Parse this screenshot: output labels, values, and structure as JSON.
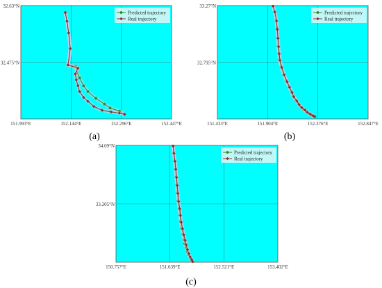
{
  "chart_data": [
    {
      "type": "line",
      "label": "(a)",
      "xticks": [
        "151.993°E",
        "152.144°E",
        "152.296°E",
        "152.447°E"
      ],
      "yticks": [
        "32.63°N",
        "32.475°N"
      ],
      "xlim": [
        151.993,
        152.447
      ],
      "ylim": [
        32.34,
        32.63
      ],
      "grid": true,
      "legend": "top-right",
      "series": [
        {
          "name": "Predicted trajectory",
          "color": "#2e8b1a",
          "x": [
            152.127,
            152.132,
            152.137,
            152.142,
            152.135,
            152.147,
            152.158,
            152.162,
            152.17,
            152.182,
            152.195,
            152.219,
            152.245,
            152.262,
            152.29,
            152.305
          ],
          "y": [
            32.612,
            32.59,
            32.56,
            32.52,
            32.478,
            32.475,
            32.475,
            32.46,
            32.445,
            32.425,
            32.41,
            32.393,
            32.378,
            32.368,
            32.36,
            32.352
          ]
        },
        {
          "name": "Real trajectory",
          "color": "#8b2c2c",
          "x": [
            152.127,
            152.132,
            152.137,
            152.142,
            152.135,
            152.165,
            152.157,
            152.16,
            152.165,
            152.17,
            152.182,
            152.195,
            152.213,
            152.238,
            152.265,
            152.29,
            152.305
          ],
          "y": [
            32.612,
            32.59,
            32.56,
            32.52,
            32.478,
            32.47,
            32.455,
            32.44,
            32.425,
            32.41,
            32.395,
            32.385,
            32.372,
            32.362,
            32.358,
            32.355,
            32.352
          ]
        }
      ]
    },
    {
      "type": "line",
      "label": "(b)",
      "xticks": [
        "151.433°E",
        "151.904°E",
        "152.376°E",
        "152.847°E"
      ],
      "yticks": [
        "33.27°N",
        "32.795°N"
      ],
      "xlim": [
        151.433,
        152.847
      ],
      "ylim": [
        32.32,
        33.27
      ],
      "grid": true,
      "legend": "top-right",
      "series": [
        {
          "name": "Predicted trajectory",
          "color": "#2e8b1a",
          "x": [
            151.955,
            151.97,
            151.985,
            151.993,
            151.998,
            152.003,
            152.008,
            152.015,
            152.03,
            152.055,
            152.08,
            152.105,
            152.125,
            152.145,
            152.168,
            152.192,
            152.215,
            152.24,
            152.268,
            152.295,
            152.32,
            152.345
          ],
          "y": [
            33.265,
            33.22,
            33.15,
            33.08,
            33.0,
            32.93,
            32.87,
            32.82,
            32.76,
            32.69,
            32.64,
            32.59,
            32.55,
            32.51,
            32.48,
            32.45,
            32.42,
            32.4,
            32.38,
            32.365,
            32.35,
            32.34
          ]
        },
        {
          "name": "Real trajectory",
          "color": "#8b2c2c",
          "x": [
            151.955,
            151.972,
            151.988,
            151.995,
            152.002,
            152.008,
            152.013,
            152.02,
            152.038,
            152.06,
            152.088,
            152.11,
            152.135,
            152.15,
            152.178,
            152.2,
            152.225,
            152.255,
            152.278,
            152.305,
            152.33,
            152.345
          ],
          "y": [
            33.265,
            33.215,
            33.14,
            33.07,
            32.995,
            32.925,
            32.865,
            32.81,
            32.75,
            32.69,
            32.63,
            32.585,
            32.54,
            32.505,
            32.47,
            32.44,
            32.415,
            32.395,
            32.375,
            32.36,
            32.348,
            32.34
          ]
        }
      ]
    },
    {
      "type": "line",
      "label": "(c)",
      "xticks": [
        "150.757°E",
        "151.639°E",
        "152.521°E",
        "153.402°E"
      ],
      "yticks": [
        "34.09°N",
        "33.205°N"
      ],
      "xlim": [
        150.757,
        153.402
      ],
      "ylim": [
        32.34,
        34.09
      ],
      "grid": true,
      "legend": "top-right",
      "series": [
        {
          "name": "Predicted trajectory",
          "color": "#2e8b1a",
          "x": [
            151.69,
            151.7,
            151.715,
            151.73,
            151.74,
            151.75,
            151.76,
            151.77,
            151.79,
            151.8,
            151.81,
            151.83,
            151.85,
            151.87,
            151.88,
            151.9,
            151.92,
            151.945,
            151.97,
            151.99,
            152.01
          ],
          "y": [
            34.08,
            33.98,
            33.86,
            33.74,
            33.62,
            33.5,
            33.38,
            33.26,
            33.15,
            33.05,
            32.95,
            32.85,
            32.76,
            32.68,
            32.62,
            32.56,
            32.5,
            32.45,
            32.41,
            32.37,
            32.35
          ]
        },
        {
          "name": "Real trajectory",
          "color": "#8b2c2c",
          "x": [
            151.69,
            151.705,
            151.722,
            151.735,
            151.748,
            151.758,
            151.77,
            151.782,
            151.8,
            151.812,
            151.825,
            151.845,
            151.866,
            151.888,
            151.905,
            151.925,
            151.948,
            151.97,
            151.995,
            152.01
          ],
          "y": [
            34.08,
            33.97,
            33.85,
            33.73,
            33.61,
            33.49,
            33.37,
            33.25,
            33.14,
            33.04,
            32.94,
            32.84,
            32.75,
            32.67,
            32.6,
            32.53,
            32.47,
            32.42,
            32.38,
            32.35
          ]
        }
      ]
    }
  ]
}
